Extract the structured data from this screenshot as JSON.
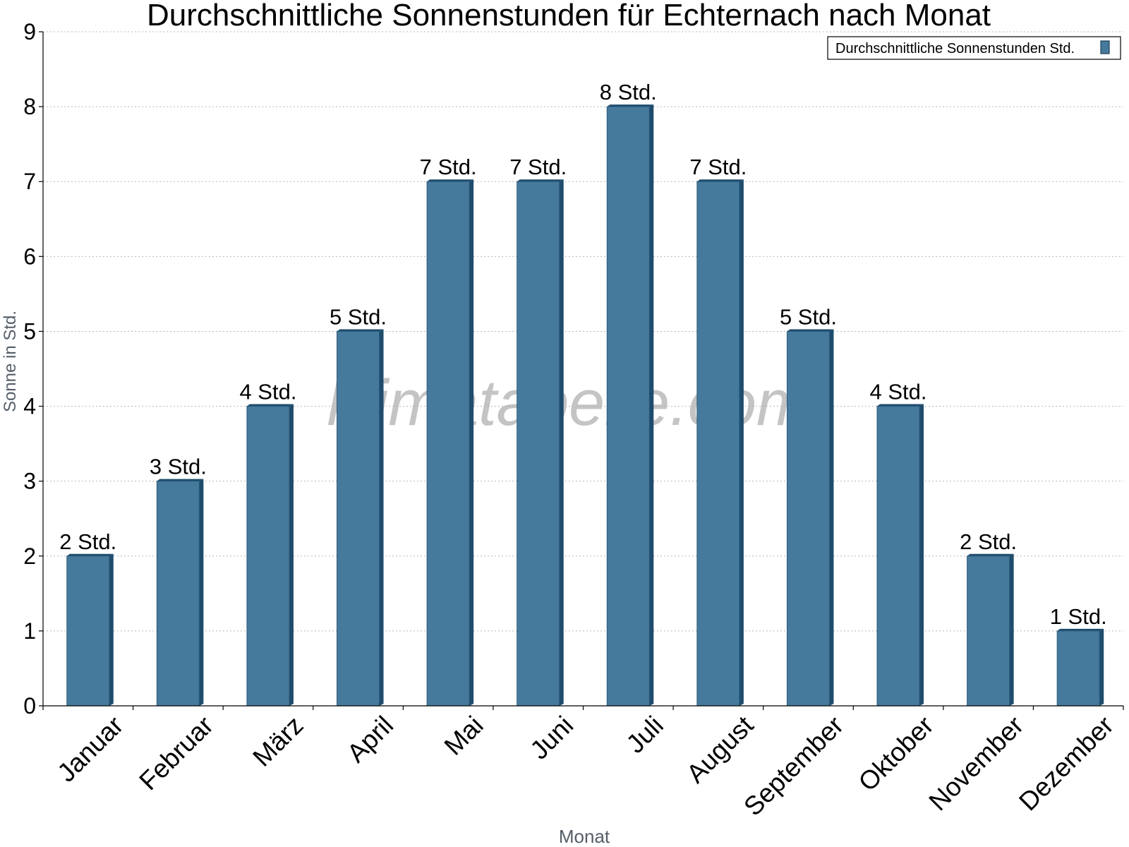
{
  "chart_data": {
    "type": "bar",
    "title": "Durchschnittliche Sonnenstunden für Echternach nach Monat",
    "xlabel": "Monat",
    "ylabel": "Sonne in Std.",
    "ylim": [
      0,
      9
    ],
    "yticks": [
      0,
      1,
      2,
      3,
      4,
      5,
      6,
      7,
      8,
      9
    ],
    "grid": true,
    "legend_position": "top-right",
    "categories": [
      "Januar",
      "Februar",
      "März",
      "April",
      "Mai",
      "Juni",
      "Juli",
      "August",
      "September",
      "Oktober",
      "November",
      "Dezember"
    ],
    "series": [
      {
        "name": "Durchschnittliche Sonnenstunden Std.",
        "values": [
          2,
          3,
          4,
          5,
          7,
          7,
          8,
          7,
          5,
          4,
          2,
          1
        ],
        "labels": [
          "2 Std.",
          "3 Std.",
          "4 Std.",
          "5 Std.",
          "7 Std.",
          "7 Std.",
          "8 Std.",
          "7 Std.",
          "5 Std.",
          "4 Std.",
          "2 Std.",
          "1 Std."
        ],
        "color": "#467a9c",
        "side_color": "#1f4c6c"
      }
    ],
    "watermark": "klimatabelle.com"
  }
}
